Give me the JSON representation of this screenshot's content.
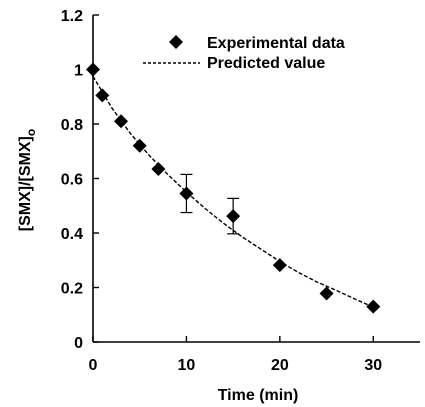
{
  "chart_data": {
    "type": "scatter",
    "xlabel": "Time (min)",
    "ylabel": "[SMX]/[SMX]o",
    "ylabel_main": "[SMX]/[SMX]",
    "ylabel_subscript": "o",
    "xlim": [
      0,
      35
    ],
    "ylim": [
      0,
      1.2
    ],
    "xticks": [
      0,
      10,
      20,
      30
    ],
    "yticks": [
      0,
      0.2,
      0.4,
      0.6,
      0.8,
      1,
      1.2
    ],
    "xtick_labels": [
      "0",
      "10",
      "20",
      "30"
    ],
    "ytick_labels": [
      "0",
      "0.2",
      "0.4",
      "0.6",
      "0.8",
      "1",
      "1.2"
    ],
    "grid": false,
    "legend_position": "top-right",
    "series": [
      {
        "name": "Experimental data",
        "marker": "diamond",
        "color": "#000000",
        "x": [
          0,
          1,
          3,
          5,
          7,
          10,
          15,
          20,
          25,
          30
        ],
        "y": [
          1.0,
          0.905,
          0.81,
          0.72,
          0.635,
          0.545,
          0.462,
          0.282,
          0.178,
          0.13
        ],
        "error": [
          0,
          0,
          0,
          0,
          0,
          0.07,
          0.065,
          0,
          0,
          0
        ]
      },
      {
        "name": "Predicted value",
        "style": "dashed",
        "color": "#000000",
        "x": [
          0,
          2,
          4,
          6,
          8,
          10,
          12,
          14,
          16,
          18,
          20,
          22,
          24,
          26,
          28,
          30
        ],
        "y": [
          0.975,
          0.86,
          0.765,
          0.685,
          0.615,
          0.55,
          0.49,
          0.435,
          0.385,
          0.34,
          0.295,
          0.255,
          0.22,
          0.19,
          0.158,
          0.128
        ]
      }
    ]
  }
}
